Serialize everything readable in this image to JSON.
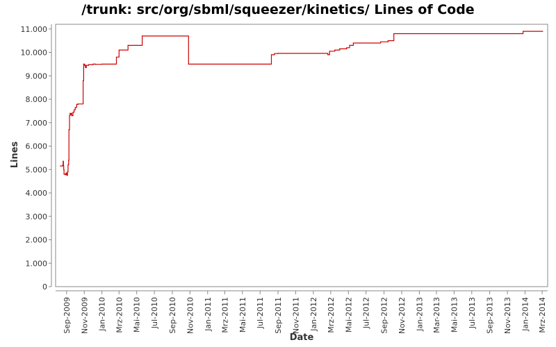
{
  "chart_data": {
    "type": "line",
    "title": "/trunk: src/org/sbml/squeezer/kinetics/ Lines of Code",
    "xlabel": "Date",
    "ylabel": "Lines",
    "ylim": [
      0,
      11200
    ],
    "yticks": [
      0,
      1000,
      2000,
      3000,
      4000,
      5000,
      6000,
      7000,
      8000,
      9000,
      10000,
      11000
    ],
    "ytick_labels": [
      "0",
      "1.000",
      "2.000",
      "3.000",
      "4.000",
      "5.000",
      "6.000",
      "7.000",
      "8.000",
      "9.000",
      "10.000",
      "11.000"
    ],
    "xlim": [
      "2009-07-25",
      "2014-03-20"
    ],
    "xticks": [
      "2009-09-01",
      "2009-11-01",
      "2010-01-01",
      "2010-03-01",
      "2010-05-01",
      "2010-07-01",
      "2010-09-01",
      "2010-11-01",
      "2011-01-01",
      "2011-03-01",
      "2011-05-01",
      "2011-07-01",
      "2011-09-01",
      "2011-11-01",
      "2012-01-01",
      "2012-03-01",
      "2012-05-01",
      "2012-07-01",
      "2012-09-01",
      "2012-11-01",
      "2013-01-01",
      "2013-03-01",
      "2013-05-01",
      "2013-07-01",
      "2013-09-01",
      "2013-11-01",
      "2014-01-01",
      "2014-03-01"
    ],
    "xtick_labels": [
      "Sep-2009",
      "Nov-2009",
      "Jan-2010",
      "Mrz-2010",
      "Mai-2010",
      "Jul-2010",
      "Sep-2010",
      "Nov-2010",
      "Jan-2011",
      "Mrz-2011",
      "Mai-2011",
      "Jul-2011",
      "Sep-2011",
      "Nov-2011",
      "Jan-2012",
      "Mrz-2012",
      "Mai-2012",
      "Jul-2012",
      "Sep-2012",
      "Nov-2012",
      "Jan-2013",
      "Mar-2013",
      "Mai-2013",
      "Jul-2013",
      "Sep-2013",
      "Nov-2013",
      "Jan-2014",
      "Mrz-2014"
    ],
    "grid": false,
    "line_color": "#cc0000",
    "series": [
      {
        "step": true,
        "points": [
          [
            "2009-08-10",
            5150
          ],
          [
            "2009-08-18",
            5180
          ],
          [
            "2009-08-20",
            5350
          ],
          [
            "2009-08-21",
            5150
          ],
          [
            "2009-08-22",
            5000
          ],
          [
            "2009-08-23",
            4800
          ],
          [
            "2009-08-27",
            4780
          ],
          [
            "2009-08-30",
            4850
          ],
          [
            "2009-09-02",
            4750
          ],
          [
            "2009-09-04",
            4900
          ],
          [
            "2009-09-06",
            5200
          ],
          [
            "2009-09-08",
            5400
          ],
          [
            "2009-09-09",
            6700
          ],
          [
            "2009-09-11",
            7300
          ],
          [
            "2009-09-13",
            7400
          ],
          [
            "2009-09-15",
            7350
          ],
          [
            "2009-09-17",
            7400
          ],
          [
            "2009-09-19",
            7300
          ],
          [
            "2009-09-23",
            7450
          ],
          [
            "2009-09-27",
            7550
          ],
          [
            "2009-10-01",
            7650
          ],
          [
            "2009-10-06",
            7780
          ],
          [
            "2009-10-10",
            7800
          ],
          [
            "2009-10-28",
            8800
          ],
          [
            "2009-10-30",
            9500
          ],
          [
            "2009-11-02",
            9450
          ],
          [
            "2009-11-05",
            9350
          ],
          [
            "2009-11-08",
            9450
          ],
          [
            "2009-11-16",
            9480
          ],
          [
            "2009-12-01",
            9500
          ],
          [
            "2009-12-10",
            9490
          ],
          [
            "2010-01-01",
            9500
          ],
          [
            "2010-02-20",
            9800
          ],
          [
            "2010-03-01",
            10100
          ],
          [
            "2010-04-01",
            10300
          ],
          [
            "2010-05-20",
            10700
          ],
          [
            "2010-10-27",
            9500
          ],
          [
            "2011-08-09",
            9900
          ],
          [
            "2011-08-20",
            9950
          ],
          [
            "2011-09-01",
            9960
          ],
          [
            "2012-02-20",
            9900
          ],
          [
            "2012-02-26",
            10050
          ],
          [
            "2012-03-15",
            10100
          ],
          [
            "2012-04-01",
            10150
          ],
          [
            "2012-04-25",
            10200
          ],
          [
            "2012-05-05",
            10300
          ],
          [
            "2012-05-18",
            10400
          ],
          [
            "2012-08-20",
            10450
          ],
          [
            "2012-09-15",
            10500
          ],
          [
            "2012-10-05",
            10800
          ],
          [
            "2013-12-25",
            10900
          ],
          [
            "2014-03-03",
            10900
          ]
        ]
      }
    ]
  }
}
